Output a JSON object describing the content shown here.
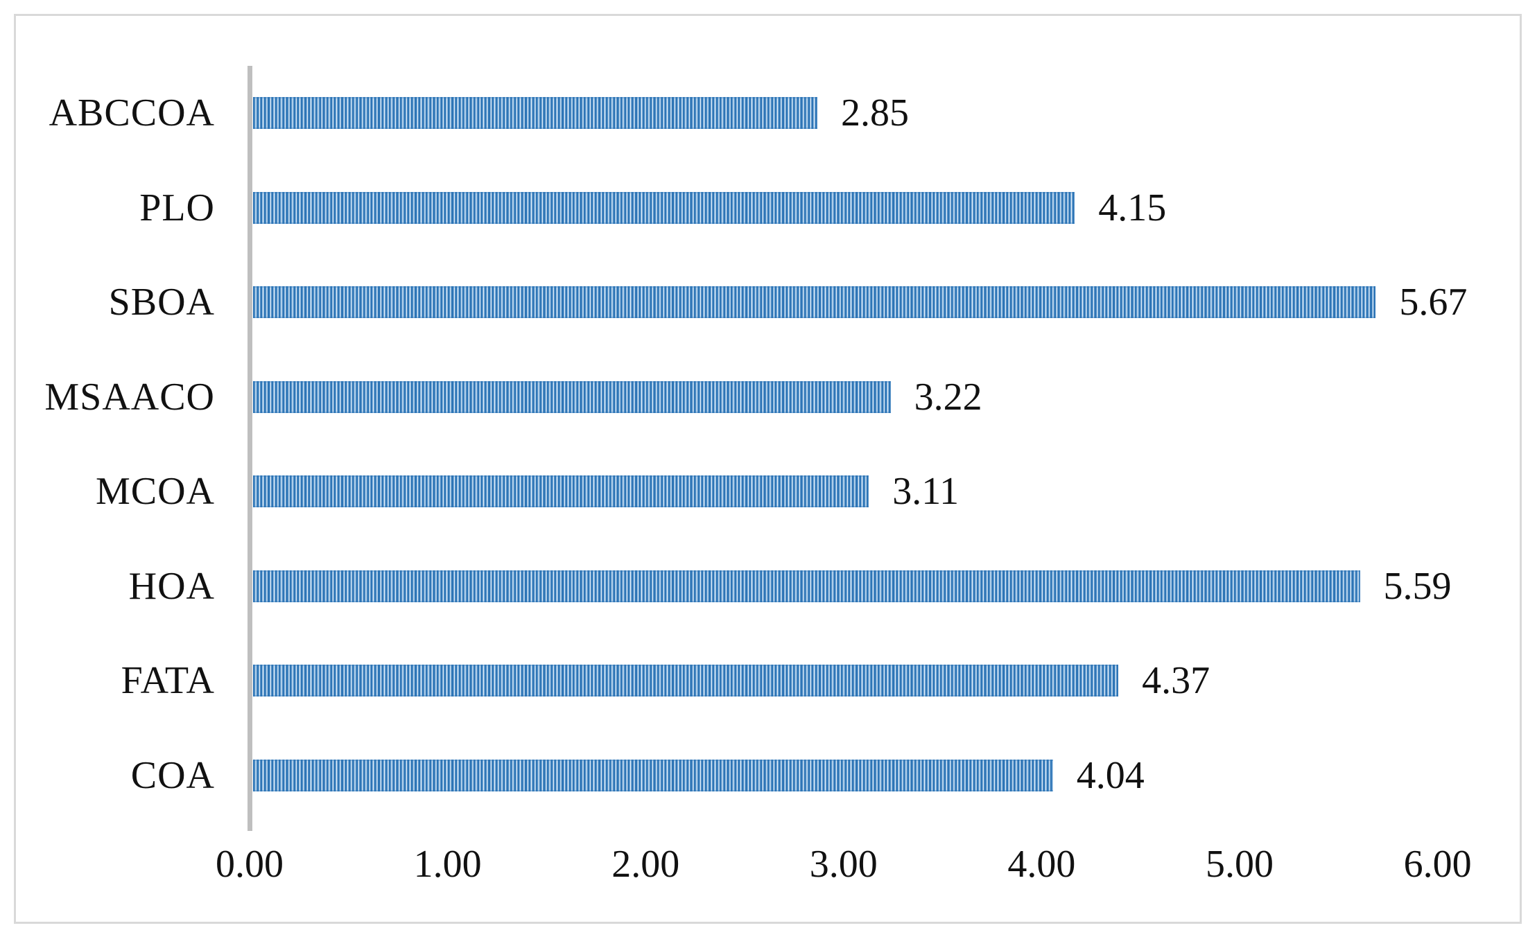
{
  "chart_data": {
    "type": "bar",
    "orientation": "horizontal",
    "title": "",
    "xlabel": "",
    "ylabel": "",
    "categories": [
      "ABCCOA",
      "PLO",
      "SBOA",
      "MSAACO",
      "MCOA",
      "HOA",
      "FATA",
      "COA"
    ],
    "values": [
      2.85,
      4.15,
      5.67,
      3.22,
      3.11,
      5.59,
      4.37,
      4.04
    ],
    "data_labels": [
      "2.85",
      "4.15",
      "5.67",
      "3.22",
      "3.11",
      "5.59",
      "4.37",
      "4.04"
    ],
    "xlim": [
      0,
      6
    ],
    "x_ticks": [
      "0.00",
      "1.00",
      "2.00",
      "3.00",
      "4.00",
      "5.00",
      "6.00"
    ],
    "grid": false,
    "legend": false,
    "bar_color": "#2E75B6",
    "bar_pattern": "light-vertical-stripes",
    "axis_line_color": "#BFBFBF",
    "frame_border_color": "#D9D9D9",
    "text_color": "#111111"
  }
}
